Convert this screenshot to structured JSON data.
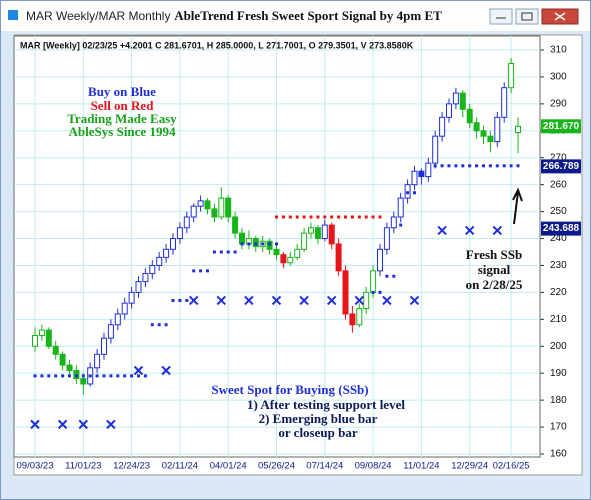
{
  "window": {
    "title": "MAR Weekly/MAR Monthly"
  },
  "chart_data": {
    "type": "candlestick",
    "title": "AbleTrend Fresh Sweet Sport Signal by 4pm ET",
    "header": "MAR [Weekly] 02/23/25 +4.2001 C 281.6701, H 285.0000, L 271.7001, O 279.3501, V 273.8580K",
    "annotations": [
      "Buy on Blue",
      "Sell on Red",
      "Trading Made Easy",
      "AbleSys Since 1994",
      "Fresh SSb",
      "signal",
      "on 2/28/25",
      "Sweet Spot for Buying (SSb)",
      "1) After testing support level",
      "2) Emerging blue bar",
      "or closeup bar"
    ],
    "categories": [
      "09/03/23",
      null,
      null,
      null,
      null,
      null,
      null,
      "11/01/23",
      null,
      null,
      null,
      null,
      null,
      null,
      "12/24/23",
      null,
      null,
      null,
      null,
      null,
      null,
      "02/11/24",
      null,
      null,
      null,
      null,
      null,
      null,
      "04/01/24",
      null,
      null,
      null,
      null,
      null,
      null,
      "05/26/24",
      null,
      null,
      null,
      null,
      null,
      null,
      "07/14/24",
      null,
      null,
      null,
      null,
      null,
      null,
      "09/08/24",
      null,
      null,
      null,
      null,
      null,
      null,
      "11/01/24",
      null,
      null,
      null,
      null,
      null,
      null,
      "12/29/24",
      null,
      null,
      null,
      null,
      null,
      "02/16/25",
      null
    ],
    "ohlc": [
      [
        200,
        207,
        198,
        204
      ],
      [
        204,
        208,
        202,
        206
      ],
      [
        206,
        207,
        199,
        200
      ],
      [
        200,
        202,
        195,
        197
      ],
      [
        197,
        198,
        191,
        193
      ],
      [
        193,
        195,
        189,
        191
      ],
      [
        191,
        193,
        186,
        188
      ],
      [
        188,
        190,
        182,
        186
      ],
      [
        186,
        194,
        185,
        192
      ],
      [
        192,
        199,
        190,
        197
      ],
      [
        197,
        205,
        195,
        203
      ],
      [
        203,
        210,
        201,
        208
      ],
      [
        208,
        214,
        206,
        212
      ],
      [
        212,
        218,
        210,
        216
      ],
      [
        216,
        222,
        214,
        220
      ],
      [
        220,
        226,
        218,
        224
      ],
      [
        224,
        229,
        222,
        227
      ],
      [
        227,
        232,
        225,
        230
      ],
      [
        230,
        235,
        228,
        233
      ],
      [
        233,
        238,
        231,
        236
      ],
      [
        236,
        242,
        234,
        240
      ],
      [
        240,
        246,
        238,
        244
      ],
      [
        244,
        250,
        242,
        248
      ],
      [
        248,
        253,
        246,
        252
      ],
      [
        252,
        256,
        250,
        254
      ],
      [
        254,
        255,
        249,
        251
      ],
      [
        251,
        253,
        246,
        248
      ],
      [
        248,
        259,
        247,
        255
      ],
      [
        255,
        256,
        246,
        248
      ],
      [
        248,
        250,
        240,
        242
      ],
      [
        242,
        244,
        236,
        238
      ],
      [
        238,
        243,
        236,
        240
      ],
      [
        240,
        241,
        235,
        237
      ],
      [
        237,
        241,
        235,
        239
      ],
      [
        239,
        240,
        234,
        236
      ],
      [
        236,
        238,
        232,
        234
      ],
      [
        234,
        235,
        229,
        231
      ],
      [
        231,
        235,
        230,
        233
      ],
      [
        233,
        238,
        232,
        236
      ],
      [
        236,
        244,
        235,
        242
      ],
      [
        242,
        246,
        240,
        244
      ],
      [
        244,
        245,
        238,
        240
      ],
      [
        240,
        247,
        239,
        245
      ],
      [
        245,
        246,
        236,
        238
      ],
      [
        238,
        240,
        226,
        228
      ],
      [
        228,
        230,
        210,
        212
      ],
      [
        212,
        215,
        205,
        208
      ],
      [
        208,
        216,
        207,
        214
      ],
      [
        214,
        222,
        212,
        220
      ],
      [
        220,
        230,
        218,
        228
      ],
      [
        228,
        238,
        226,
        236
      ],
      [
        236,
        246,
        234,
        244
      ],
      [
        244,
        250,
        242,
        248
      ],
      [
        248,
        257,
        246,
        255
      ],
      [
        255,
        262,
        253,
        260
      ],
      [
        260,
        267,
        258,
        265
      ],
      [
        265,
        266,
        260,
        263
      ],
      [
        263,
        270,
        261,
        268
      ],
      [
        268,
        280,
        266,
        278
      ],
      [
        278,
        287,
        276,
        285
      ],
      [
        285,
        292,
        283,
        290
      ],
      [
        290,
        296,
        288,
        294
      ],
      [
        294,
        295,
        285,
        288
      ],
      [
        288,
        290,
        281,
        283
      ],
      [
        283,
        285,
        277,
        280
      ],
      [
        280,
        282,
        275,
        278
      ],
      [
        278,
        280,
        272,
        276
      ],
      [
        276,
        287,
        274,
        285
      ],
      [
        285,
        298,
        283,
        296
      ],
      [
        296,
        307,
        294,
        305
      ],
      [
        279.3501,
        285,
        271.7001,
        281.6701
      ]
    ],
    "colors": [
      "#18b41a",
      "#18b41a",
      "#18b41a",
      "#18b41a",
      "#18b41a",
      "#18b41a",
      "#18b41a",
      "#18b41a",
      "#1f2fd6",
      "#1f2fd6",
      "#1f2fd6",
      "#1f2fd6",
      "#1f2fd6",
      "#1f2fd6",
      "#1f2fd6",
      "#1f2fd6",
      "#1f2fd6",
      "#1f2fd6",
      "#1f2fd6",
      "#1f2fd6",
      "#1f2fd6",
      "#1f2fd6",
      "#1f2fd6",
      "#1f2fd6",
      "#1f2fd6",
      "#18b41a",
      "#18b41a",
      "#18b41a",
      "#18b41a",
      "#18b41a",
      "#18b41a",
      "#18b41a",
      "#18b41a",
      "#18b41a",
      "#18b41a",
      "#18b41a",
      "#e8141a",
      "#18b41a",
      "#18b41a",
      "#18b41a",
      "#18b41a",
      "#18b41a",
      "#1f2fd6",
      "#e8141a",
      "#e8141a",
      "#e8141a",
      "#e8141a",
      "#18b41a",
      "#18b41a",
      "#18b41a",
      "#1f2fd6",
      "#1f2fd6",
      "#1f2fd6",
      "#1f2fd6",
      "#1f2fd6",
      "#1f2fd6",
      "#1f2fd6",
      "#1f2fd6",
      "#1f2fd6",
      "#1f2fd6",
      "#1f2fd6",
      "#1f2fd6",
      "#18b41a",
      "#18b41a",
      "#18b41a",
      "#18b41a",
      "#18b41a",
      "#1f2fd6",
      "#1f2fd6",
      "#18b41a",
      "#18b41a"
    ],
    "support": {
      "color": "#1f2fd6",
      "values": [
        189,
        189,
        189,
        189,
        189,
        189,
        189,
        189,
        189,
        189,
        189,
        189,
        189,
        189,
        189,
        189,
        189,
        208,
        208,
        208,
        217,
        217,
        217,
        228,
        228,
        228,
        235,
        235,
        235,
        235,
        238,
        238,
        238,
        238,
        238,
        238,
        null,
        null,
        null,
        null,
        null,
        null,
        null,
        null,
        null,
        null,
        null,
        null,
        null,
        220,
        220,
        226,
        226,
        245,
        257,
        257,
        null,
        null,
        267,
        267,
        267,
        267,
        267,
        267,
        267,
        267,
        267,
        267,
        267,
        267,
        267
      ]
    },
    "resistance": {
      "color": "#e8141a",
      "values": [
        null,
        null,
        null,
        null,
        null,
        null,
        null,
        null,
        null,
        null,
        null,
        null,
        null,
        null,
        null,
        null,
        null,
        null,
        null,
        null,
        null,
        null,
        null,
        null,
        null,
        null,
        null,
        null,
        null,
        null,
        null,
        null,
        null,
        null,
        null,
        248,
        248,
        248,
        248,
        248,
        248,
        248,
        248,
        248,
        248,
        248,
        248,
        248,
        248,
        248,
        248,
        null,
        null,
        null,
        null,
        null,
        null,
        null,
        null,
        null,
        null,
        null,
        null,
        null,
        null,
        null,
        null,
        null,
        null,
        null,
        null
      ]
    },
    "xmarks": {
      "color": "#1f2fd6",
      "values": [
        171,
        null,
        null,
        null,
        171,
        null,
        null,
        171,
        null,
        null,
        null,
        171,
        null,
        null,
        null,
        191,
        null,
        null,
        null,
        191,
        null,
        null,
        null,
        217,
        null,
        null,
        null,
        217,
        null,
        null,
        null,
        217,
        null,
        null,
        null,
        217,
        null,
        null,
        null,
        217,
        null,
        null,
        null,
        217,
        null,
        null,
        null,
        217,
        null,
        null,
        null,
        217,
        null,
        null,
        null,
        217,
        null,
        null,
        null,
        243,
        null,
        null,
        null,
        243,
        null,
        null,
        null,
        243,
        null,
        null,
        null
      ]
    },
    "price_labels": [
      {
        "value": 281.67,
        "label": "281.670",
        "color": "#18b41a"
      },
      {
        "value": 266.789,
        "label": "266.789",
        "color": "#0c1a8c"
      },
      {
        "value": 243.688,
        "label": "243.688",
        "color": "#0c1a8c"
      }
    ],
    "ylim": [
      160,
      310
    ],
    "yticks": [
      160,
      170,
      180,
      190,
      200,
      210,
      220,
      230,
      240,
      250,
      260,
      270,
      280,
      290,
      300,
      310
    ],
    "grid": true
  }
}
